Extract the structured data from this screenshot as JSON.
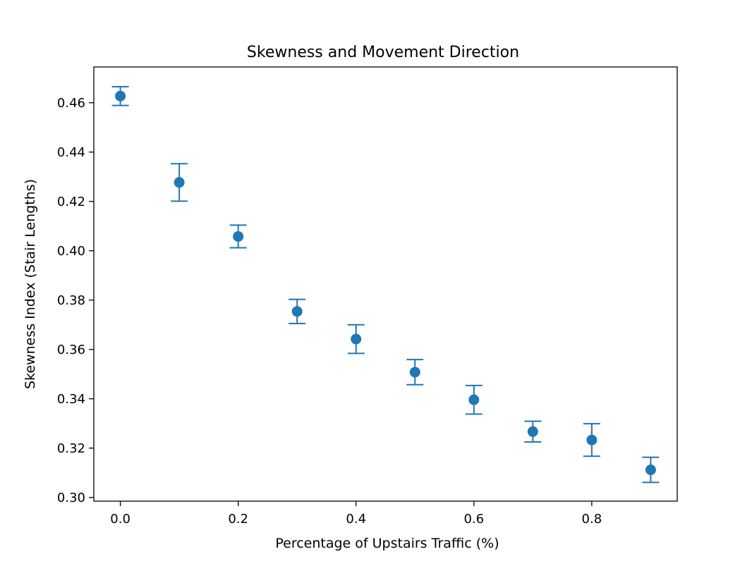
{
  "chart_data": {
    "type": "scatter",
    "title": "Skewness and Movement Direction",
    "xlabel": "Percentage of Upstairs Traffic (%)",
    "ylabel": "Skewness Index (Stair Lengths)",
    "xlim": [
      -0.045,
      0.945
    ],
    "ylim": [
      0.2985,
      0.4745
    ],
    "x_ticks": [
      0.0,
      0.2,
      0.4,
      0.6,
      0.8
    ],
    "x_tick_labels": [
      "0.0",
      "0.2",
      "0.4",
      "0.6",
      "0.8"
    ],
    "y_ticks": [
      0.3,
      0.32,
      0.34,
      0.36,
      0.38,
      0.4,
      0.42,
      0.44,
      0.46
    ],
    "y_tick_labels": [
      "0.30",
      "0.32",
      "0.34",
      "0.36",
      "0.38",
      "0.40",
      "0.42",
      "0.44",
      "0.46"
    ],
    "grid": false,
    "legend": "none",
    "color": "#1f77b4",
    "series": [
      {
        "x": [
          0.0,
          0.1,
          0.2,
          0.3,
          0.4,
          0.5,
          0.6,
          0.7,
          0.8,
          0.9
        ],
        "y": [
          0.4627,
          0.4277,
          0.4058,
          0.3754,
          0.3642,
          0.3508,
          0.3396,
          0.3267,
          0.3233,
          0.3112
        ],
        "yerr": [
          0.0038,
          0.0076,
          0.0046,
          0.0049,
          0.0058,
          0.0051,
          0.0058,
          0.0042,
          0.0066,
          0.0051
        ]
      }
    ]
  }
}
